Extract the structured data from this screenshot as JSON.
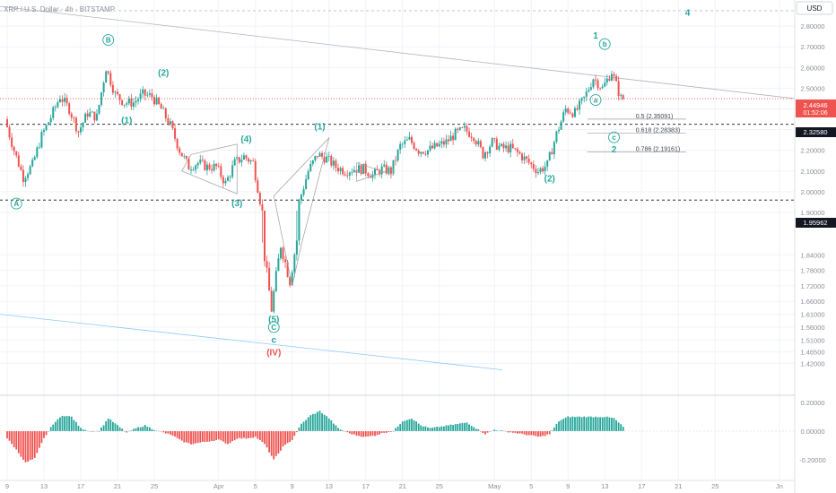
{
  "header": {
    "symbol_title": "XRP / U.S. Dollar · 4h · BITSTAMP"
  },
  "currency_label": "USD",
  "price_tags": {
    "last_price": "2.44946",
    "countdown": "01:52:06",
    "level_upper": "2.32580",
    "level_lower": "1.95962"
  },
  "colors": {
    "up": "#26a69a",
    "down": "#ef5350",
    "wave_label": "#26a69a",
    "wave_label_red": "#ef5350",
    "last_price_tag": "#ef5350",
    "level_tag": "#131722",
    "fib_line": "#9e9e9e",
    "trendline": "#b2b5be"
  },
  "chart_data": [
    {
      "type": "candlestick",
      "title": "XRP / U.S. Dollar · 4h · BITSTAMP",
      "y_ticks": [
        "2.80000",
        "2.70000",
        "2.60000",
        "2.50000",
        "2.40000",
        "2.30000",
        "2.20000",
        "2.10000",
        "2.00000",
        "1.90000",
        "1.84000",
        "1.78000",
        "1.72000",
        "1.66000",
        "1.61000",
        "1.56000",
        "1.51000",
        "1.46500",
        "1.42000"
      ],
      "x_ticks": [
        "9",
        "13",
        "17",
        "21",
        "25",
        "Apr",
        "5",
        "9",
        "13",
        "17",
        "21",
        "25",
        "May",
        "5",
        "9",
        "13",
        "17",
        "21",
        "25",
        "Jn"
      ],
      "ohlc_path": [
        [
          "Mar 9",
          2.35
        ],
        [
          "Mar 10",
          2.2
        ],
        [
          "Mar 11",
          2.07
        ],
        [
          "Mar 12",
          2.13
        ],
        [
          "Mar 13",
          2.27
        ],
        [
          "Mar 14",
          2.36
        ],
        [
          "Mar 15",
          2.46
        ],
        [
          "Mar 16",
          2.4
        ],
        [
          "Mar 17",
          2.29
        ],
        [
          "Mar 18",
          2.38
        ],
        [
          "Mar 19",
          2.36
        ],
        [
          "Mar 20",
          2.6
        ],
        [
          "Mar 21",
          2.47
        ],
        [
          "Mar 22",
          2.43
        ],
        [
          "Mar 23",
          2.43
        ],
        [
          "Mar 24",
          2.47
        ],
        [
          "Mar 25",
          2.46
        ],
        [
          "Mar 26",
          2.4
        ],
        [
          "Mar 27",
          2.32
        ],
        [
          "Mar 28",
          2.2
        ],
        [
          "Mar 29",
          2.12
        ],
        [
          "Mar 30",
          2.14
        ],
        [
          "Mar 31",
          2.12
        ],
        [
          "Apr 1",
          2.12
        ],
        [
          "Apr 2",
          2.04
        ],
        [
          "Apr 3",
          2.14
        ],
        [
          "Apr 4",
          2.17
        ],
        [
          "Apr 5",
          2.14
        ],
        [
          "Apr 6",
          1.9
        ],
        [
          "Apr 7",
          1.63
        ],
        [
          "Apr 8",
          1.88
        ],
        [
          "Apr 9",
          1.74
        ],
        [
          "Apr 10",
          1.95
        ],
        [
          "Apr 11",
          2.1
        ],
        [
          "Apr 12",
          2.18
        ],
        [
          "Apr 13",
          2.16
        ],
        [
          "Apr 14",
          2.12
        ],
        [
          "Apr 15",
          2.1
        ],
        [
          "Apr 16",
          2.11
        ],
        [
          "Apr 17",
          2.11
        ],
        [
          "Apr 18",
          2.08
        ],
        [
          "Apr 19",
          2.11
        ],
        [
          "Apr 20",
          2.1
        ],
        [
          "Apr 21",
          2.22
        ],
        [
          "Apr 22",
          2.25
        ],
        [
          "Apr 23",
          2.2
        ],
        [
          "Apr 24",
          2.2
        ],
        [
          "Apr 25",
          2.22
        ],
        [
          "Apr 26",
          2.24
        ],
        [
          "Apr 27",
          2.28
        ],
        [
          "Apr 28",
          2.3
        ],
        [
          "Apr 29",
          2.27
        ],
        [
          "Apr 30",
          2.18
        ],
        [
          "May 1",
          2.24
        ],
        [
          "May 2",
          2.21
        ],
        [
          "May 3",
          2.21
        ],
        [
          "May 4",
          2.18
        ],
        [
          "May 5",
          2.14
        ],
        [
          "May 6",
          2.1
        ],
        [
          "May 7",
          2.13
        ],
        [
          "May 8",
          2.28
        ],
        [
          "May 9",
          2.4
        ],
        [
          "May 10",
          2.38
        ],
        [
          "May 11",
          2.45
        ],
        [
          "May 12",
          2.55
        ],
        [
          "May 13",
          2.5
        ],
        [
          "May 14",
          2.58
        ],
        [
          "May 15",
          2.45
        ]
      ],
      "macd_histogram_path": [
        [
          "Mar 9",
          -0.05
        ],
        [
          "Mar 10",
          -0.13
        ],
        [
          "Mar 11",
          -0.22
        ],
        [
          "Mar 12",
          -0.19
        ],
        [
          "Mar 13",
          -0.05
        ],
        [
          "Mar 14",
          0.05
        ],
        [
          "Mar 15",
          0.11
        ],
        [
          "Mar 16",
          0.1
        ],
        [
          "Mar 17",
          0.02
        ],
        [
          "Mar 18",
          0.0
        ],
        [
          "Mar 19",
          0.0
        ],
        [
          "Mar 20",
          0.09
        ],
        [
          "Mar 21",
          0.04
        ],
        [
          "Mar 22",
          -0.01
        ],
        [
          "Mar 23",
          0.02
        ],
        [
          "Mar 24",
          0.04
        ],
        [
          "Mar 25",
          0.01
        ],
        [
          "Mar 26",
          -0.01
        ],
        [
          "Mar 27",
          -0.03
        ],
        [
          "Mar 28",
          -0.07
        ],
        [
          "Mar 29",
          -0.09
        ],
        [
          "Mar 30",
          -0.08
        ],
        [
          "Apr 1",
          -0.06
        ],
        [
          "Apr 2",
          -0.09
        ],
        [
          "Apr 3",
          -0.05
        ],
        [
          "Apr 4",
          -0.05
        ],
        [
          "Apr 5",
          -0.04
        ],
        [
          "Apr 6",
          -0.09
        ],
        [
          "Apr 7",
          -0.2
        ],
        [
          "Apr 8",
          -0.11
        ],
        [
          "Apr 9",
          -0.06
        ],
        [
          "Apr 10",
          0.05
        ],
        [
          "Apr 11",
          0.11
        ],
        [
          "Apr 12",
          0.14
        ],
        [
          "Apr 13",
          0.09
        ],
        [
          "Apr 14",
          0.02
        ],
        [
          "Apr 15",
          -0.01
        ],
        [
          "Apr 16",
          -0.03
        ],
        [
          "Apr 17",
          -0.04
        ],
        [
          "Apr 18",
          -0.03
        ],
        [
          "Apr 19",
          -0.01
        ],
        [
          "Apr 20",
          0.0
        ],
        [
          "Apr 21",
          0.07
        ],
        [
          "Apr 22",
          0.09
        ],
        [
          "Apr 23",
          0.04
        ],
        [
          "Apr 24",
          0.02
        ],
        [
          "Apr 25",
          0.03
        ],
        [
          "Apr 26",
          0.04
        ],
        [
          "Apr 27",
          0.05
        ],
        [
          "Apr 28",
          0.06
        ],
        [
          "Apr 29",
          0.02
        ],
        [
          "Apr 30",
          -0.02
        ],
        [
          "May 1",
          0.01
        ],
        [
          "May 2",
          0.0
        ],
        [
          "May 3",
          -0.01
        ],
        [
          "May 4",
          -0.02
        ],
        [
          "May 5",
          -0.03
        ],
        [
          "May 6",
          -0.04
        ],
        [
          "May 7",
          -0.02
        ],
        [
          "May 8",
          0.07
        ],
        [
          "May 9",
          0.1
        ],
        [
          "May 10",
          0.1
        ],
        [
          "May 11",
          0.1
        ],
        [
          "May 12",
          0.1
        ],
        [
          "May 13",
          0.1
        ],
        [
          "May 14",
          0.09
        ],
        [
          "May 15",
          0.03
        ]
      ],
      "macd_y_ticks": [
        "0.20000",
        "0.00000",
        "-0.20000"
      ],
      "fib_levels": [
        {
          "label": "0.5 (2.35091)",
          "value": 2.35091
        },
        {
          "label": "0.618 (2.28383)",
          "value": 2.28383
        },
        {
          "label": "0.786 (2.19161)",
          "value": 2.19161
        }
      ],
      "horizontal_levels": [
        {
          "value": 2.44946,
          "style": "dotted",
          "color": "#ef5350"
        },
        {
          "value": 2.3258,
          "style": "dashed",
          "color": "#131722"
        },
        {
          "value": 1.95962,
          "style": "dashed",
          "color": "#131722"
        }
      ],
      "wave_labels": [
        {
          "text": "A",
          "circled": true,
          "date": "Mar 10",
          "price": 1.93
        },
        {
          "text": "B",
          "circled": true,
          "date": "Mar 20",
          "price": 2.72
        },
        {
          "text": "(1)",
          "circled": false,
          "date": "Mar 22",
          "price": 2.33
        },
        {
          "text": "(2)",
          "circled": false,
          "date": "Mar 26",
          "price": 2.56
        },
        {
          "text": "(3)",
          "circled": false,
          "date": "Apr 3",
          "price": 1.93
        },
        {
          "text": "(4)",
          "circled": false,
          "date": "Apr 4",
          "price": 2.24
        },
        {
          "text": "(5)",
          "circled": false,
          "date": "Apr 7",
          "price": 1.58
        },
        {
          "text": "C",
          "circled": true,
          "date": "Apr 7",
          "price": 1.55
        },
        {
          "text": "c",
          "circled": false,
          "date": "Apr 7",
          "price": 1.5
        },
        {
          "text": "(IV)",
          "circled": false,
          "date": "Apr 7",
          "price": 1.45,
          "color": "red"
        },
        {
          "text": "(1)",
          "circled": false,
          "date": "Apr 12",
          "price": 2.3
        },
        {
          "text": "(2)",
          "circled": false,
          "date": "May 7",
          "price": 2.05
        },
        {
          "text": "1",
          "circled": false,
          "date": "May 12",
          "price": 2.74
        },
        {
          "text": "b",
          "circled": true,
          "date": "May 13",
          "price": 2.7
        },
        {
          "text": "a",
          "circled": true,
          "date": "May 12",
          "price": 2.43
        },
        {
          "text": "c",
          "circled": true,
          "date": "May 14",
          "price": 2.25
        },
        {
          "text": "2",
          "circled": false,
          "date": "May 14",
          "price": 2.19
        },
        {
          "text": "4",
          "circled": false,
          "date": "May 22",
          "price": 2.85
        }
      ]
    }
  ]
}
